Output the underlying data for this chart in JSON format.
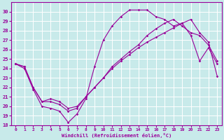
{
  "xlabel": "Windchill (Refroidissement éolien,°C)",
  "bg_color": "#c8eaea",
  "line_color": "#990099",
  "grid_color": "#ffffff",
  "xlim": [
    -0.5,
    23.5
  ],
  "ylim": [
    18,
    31
  ],
  "xticks": [
    0,
    1,
    2,
    3,
    4,
    5,
    6,
    7,
    8,
    9,
    10,
    11,
    12,
    13,
    14,
    15,
    16,
    17,
    18,
    19,
    20,
    21,
    22,
    23
  ],
  "yticks": [
    18,
    19,
    20,
    21,
    22,
    23,
    24,
    25,
    26,
    27,
    28,
    29,
    30
  ],
  "line1_x": [
    0,
    1,
    2,
    3,
    4,
    5,
    6,
    7,
    8,
    9,
    10,
    11,
    12,
    13,
    14,
    15,
    16,
    17,
    18,
    19,
    20,
    21,
    22,
    23
  ],
  "line1_y": [
    24.5,
    24.0,
    21.8,
    20.0,
    19.8,
    19.5,
    18.3,
    19.2,
    20.8,
    24.2,
    27.0,
    28.5,
    29.5,
    30.2,
    30.2,
    30.2,
    29.5,
    29.2,
    28.5,
    28.8,
    27.5,
    24.8,
    26.2,
    24.5
  ],
  "line2_x": [
    0,
    1,
    2,
    3,
    4,
    5,
    6,
    7,
    8,
    9,
    10,
    11,
    12,
    13,
    14,
    15,
    16,
    17,
    18,
    19,
    20,
    21,
    22,
    23
  ],
  "line2_y": [
    24.5,
    24.2,
    22.0,
    20.5,
    20.5,
    20.2,
    19.5,
    19.8,
    21.0,
    22.0,
    23.0,
    24.2,
    25.0,
    25.8,
    26.5,
    27.5,
    28.2,
    28.8,
    29.2,
    28.5,
    27.8,
    27.5,
    26.5,
    24.8
  ],
  "line3_x": [
    0,
    1,
    2,
    3,
    4,
    5,
    6,
    7,
    8,
    9,
    10,
    11,
    12,
    13,
    14,
    15,
    16,
    17,
    18,
    19,
    20,
    21,
    22,
    23
  ],
  "line3_y": [
    24.5,
    24.2,
    22.0,
    20.5,
    20.8,
    20.5,
    19.8,
    20.0,
    21.0,
    22.0,
    23.0,
    24.0,
    24.8,
    25.5,
    26.2,
    26.8,
    27.3,
    27.8,
    28.3,
    28.8,
    29.2,
    27.8,
    26.8,
    23.2
  ]
}
